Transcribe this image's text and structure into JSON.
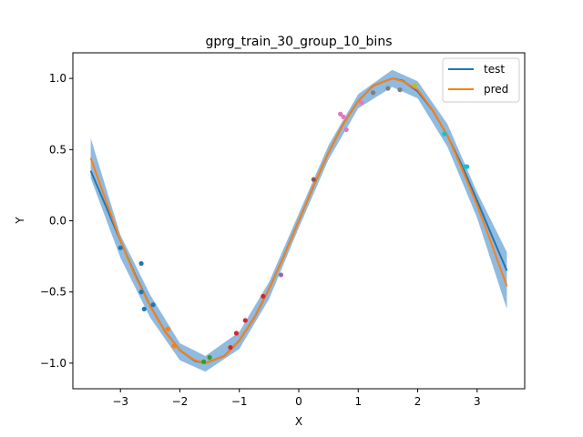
{
  "chart_data": {
    "type": "line",
    "title": "gprg_train_30_group_10_bins",
    "xlabel": "X",
    "ylabel": "Y",
    "xlim": [
      -3.8,
      3.8
    ],
    "ylim": [
      -1.18,
      1.18
    ],
    "xticks": [
      -3,
      -2,
      -1,
      0,
      1,
      2,
      3
    ],
    "xtick_labels": [
      "−3",
      "−2",
      "−1",
      "0",
      "1",
      "2",
      "3"
    ],
    "yticks": [
      -1.0,
      -0.5,
      0.0,
      0.5,
      1.0
    ],
    "ytick_labels": [
      "−1.0",
      "−0.5",
      "0.0",
      "0.5",
      "1.0"
    ],
    "grid": false,
    "legend": {
      "position": "top-right",
      "entries": [
        {
          "name": "test",
          "color": "#1f77b4"
        },
        {
          "name": "pred",
          "color": "#ff7f0e"
        }
      ]
    },
    "band": {
      "color": "#8ab6dd",
      "x": [
        -3.5,
        -3.0,
        -2.5,
        -2.0,
        -1.571,
        -1.0,
        -0.5,
        0.0,
        0.5,
        1.0,
        1.571,
        2.0,
        2.5,
        3.0,
        3.5
      ],
      "upper": [
        0.58,
        -0.1,
        -0.52,
        -0.86,
        -0.95,
        -0.78,
        -0.43,
        0.05,
        0.53,
        0.89,
        1.06,
        0.98,
        0.68,
        0.2,
        -0.22
      ],
      "lower": [
        0.3,
        -0.26,
        -0.68,
        -0.98,
        -1.06,
        -0.9,
        -0.55,
        -0.05,
        0.43,
        0.79,
        0.94,
        0.86,
        0.52,
        0.02,
        -0.62
      ]
    },
    "series": [
      {
        "name": "test",
        "color": "#1f77b4",
        "x": [
          -3.5,
          -3.25,
          -3.0,
          -2.75,
          -2.5,
          -2.25,
          -2.0,
          -1.75,
          -1.571,
          -1.25,
          -1.0,
          -0.75,
          -0.5,
          -0.25,
          0.0,
          0.25,
          0.5,
          0.75,
          1.0,
          1.25,
          1.571,
          1.75,
          2.0,
          2.25,
          2.5,
          2.75,
          3.0,
          3.25,
          3.5
        ],
        "y": [
          0.351,
          0.108,
          -0.141,
          -0.382,
          -0.598,
          -0.778,
          -0.909,
          -0.984,
          -1.0,
          -0.949,
          -0.841,
          -0.682,
          -0.479,
          -0.247,
          0.0,
          0.247,
          0.479,
          0.682,
          0.841,
          0.949,
          1.0,
          0.984,
          0.909,
          0.778,
          0.598,
          0.382,
          0.141,
          -0.108,
          -0.351
        ]
      },
      {
        "name": "pred",
        "color": "#ff7f0e",
        "x": [
          -3.5,
          -3.25,
          -3.0,
          -2.75,
          -2.5,
          -2.25,
          -2.0,
          -1.75,
          -1.571,
          -1.25,
          -1.0,
          -0.75,
          -0.5,
          -0.25,
          0.0,
          0.25,
          0.5,
          0.75,
          1.0,
          1.25,
          1.571,
          1.75,
          2.0,
          2.25,
          2.5,
          2.75,
          3.0,
          3.25,
          3.5
        ],
        "y": [
          0.44,
          0.15,
          -0.14,
          -0.39,
          -0.6,
          -0.78,
          -0.91,
          -0.98,
          -1.0,
          -0.95,
          -0.84,
          -0.68,
          -0.48,
          -0.25,
          0.0,
          0.25,
          0.48,
          0.68,
          0.84,
          0.95,
          1.0,
          0.98,
          0.92,
          0.78,
          0.6,
          0.36,
          0.11,
          -0.17,
          -0.46
        ]
      }
    ],
    "points": {
      "x": [
        -3.0,
        -2.65,
        -2.65,
        -2.6,
        -2.45,
        -2.2,
        -2.1,
        -1.6,
        -1.5,
        -1.15,
        -1.05,
        -0.9,
        -0.6,
        -0.3,
        0.25,
        0.7,
        0.75,
        0.8,
        1.05,
        1.25,
        1.5,
        1.7,
        1.95,
        2.45,
        2.8,
        2.83
      ],
      "y": [
        -0.19,
        -0.3,
        -0.5,
        -0.62,
        -0.59,
        -0.76,
        -0.88,
        -0.99,
        -0.96,
        -0.89,
        -0.79,
        -0.7,
        -0.53,
        -0.38,
        0.29,
        0.75,
        0.73,
        0.64,
        0.83,
        0.9,
        0.93,
        0.92,
        0.95,
        0.61,
        0.38,
        0.38
      ],
      "colors": [
        "#1f77b4",
        "#1f77b4",
        "#1f77b4",
        "#1f77b4",
        "#1f77b4",
        "#ff7f0e",
        "#ff7f0e",
        "#2ca02c",
        "#2ca02c",
        "#d62728",
        "#d62728",
        "#d62728",
        "#d62728",
        "#9467bd",
        "#8c564b",
        "#e377c2",
        "#e377c2",
        "#e377c2",
        "#e377c2",
        "#7f7f7f",
        "#7f7f7f",
        "#7f7f7f",
        "#bcbd22",
        "#17becf",
        "#17becf",
        "#17becf"
      ]
    }
  }
}
